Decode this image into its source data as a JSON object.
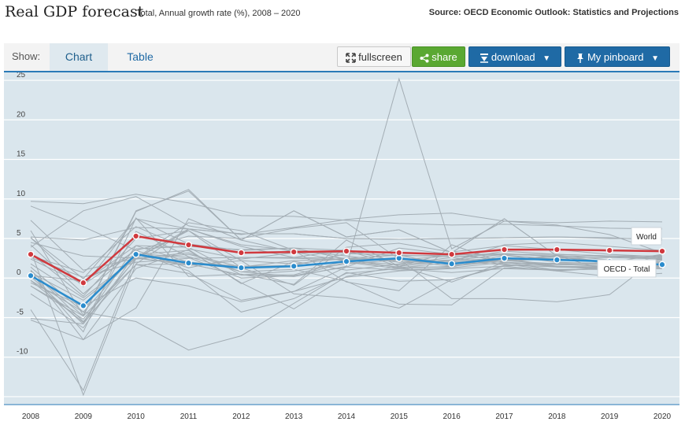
{
  "header": {
    "title": "Real GDP forecast",
    "subtitle": "Total, Annual growth rate (%), 2008 – 2020",
    "source": "Source: OECD Economic Outlook: Statistics and Projections"
  },
  "toolbar": {
    "show_label": "Show:",
    "tabs": [
      {
        "label": "Chart",
        "active": true
      },
      {
        "label": "Table",
        "active": false
      }
    ],
    "buttons": {
      "fullscreen": "fullscreen",
      "share": "share",
      "download": "download",
      "pinboard": "My pinboard"
    },
    "colors": {
      "share": "#5aa832",
      "download": "#1f6aa5",
      "pinboard": "#1f6aa5"
    }
  },
  "chart_data": {
    "type": "line",
    "x": [
      "2008",
      "2009",
      "2010",
      "2011",
      "2012",
      "2013",
      "2014",
      "2015",
      "2016",
      "2017",
      "2018",
      "2019",
      "2020"
    ],
    "ylim": [
      -16,
      26
    ],
    "yticks": [
      25,
      20,
      15,
      10,
      5,
      0,
      -5,
      -10
    ],
    "grid": true,
    "highlighted_series": [
      {
        "name": "World",
        "color": "#d0393e",
        "values": [
          3.0,
          -0.6,
          5.3,
          4.2,
          3.2,
          3.3,
          3.4,
          3.2,
          3.0,
          3.6,
          3.6,
          3.5,
          3.4
        ]
      },
      {
        "name": "OECD - Total",
        "color": "#2a8ccd",
        "values": [
          0.3,
          -3.5,
          3.0,
          1.9,
          1.3,
          1.5,
          2.1,
          2.5,
          1.8,
          2.5,
          2.3,
          2.1,
          1.7
        ]
      }
    ],
    "background_series": [
      [
        3.5,
        -14.8,
        1.8,
        6.2,
        4.2,
        3.5,
        2.8,
        2.0,
        2.3,
        3.4,
        3.0,
        2.8,
        2.6
      ],
      [
        9.7,
        9.4,
        10.6,
        9.5,
        7.9,
        7.8,
        7.3,
        6.9,
        6.7,
        6.8,
        6.6,
        6.3,
        6.2
      ],
      [
        3.9,
        8.5,
        10.3,
        6.6,
        5.5,
        6.4,
        7.4,
        8.0,
        8.2,
        7.2,
        7.0,
        7.2,
        7.1
      ],
      [
        5.2,
        4.8,
        6.4,
        6.2,
        5.6,
        5.6,
        5.0,
        4.9,
        5.0,
        5.1,
        5.2,
        5.0,
        5.0
      ],
      [
        0.7,
        -2.8,
        2.5,
        1.8,
        0.4,
        0.2,
        1.5,
        25.2,
        3.7,
        7.2,
        6.7,
        5.5,
        3.2
      ],
      [
        -4.0,
        -14.2,
        2.5,
        6.2,
        4.0,
        2.6,
        3.6,
        2.0,
        2.1,
        4.2,
        4.5,
        4.0,
        3.5
      ],
      [
        0.8,
        -7.8,
        1.2,
        3.6,
        -0.7,
        2.1,
        1.0,
        1.8,
        2.6,
        1.8,
        0.9,
        1.3,
        1.5
      ],
      [
        -0.3,
        -5.6,
        4.1,
        3.9,
        0.4,
        0.4,
        2.2,
        1.7,
        2.2,
        2.5,
        1.5,
        1.0,
        1.2
      ],
      [
        -1.0,
        -4.8,
        1.7,
        1.8,
        0.4,
        0.9,
        1.8,
        2.3,
        1.5,
        2.4,
        1.4,
        1.3,
        1.3
      ],
      [
        1.0,
        -5.5,
        1.7,
        0.6,
        -2.8,
        -1.7,
        0.1,
        0.9,
        1.2,
        1.5,
        0.9,
        0.2,
        0.6
      ],
      [
        -0.6,
        -3.6,
        0.0,
        -1.0,
        -3.0,
        -1.7,
        1.4,
        3.8,
        3.0,
        2.9,
        2.4,
        2.0,
        1.9
      ],
      [
        -0.3,
        -4.3,
        -5.5,
        -9.1,
        -7.3,
        -3.2,
        0.7,
        -0.4,
        -0.2,
        1.5,
        1.9,
        1.9,
        2.3
      ],
      [
        1.8,
        -2.5,
        2.6,
        1.6,
        2.2,
        1.8,
        2.5,
        2.9,
        1.6,
        2.2,
        2.9,
        2.3,
        2.0
      ],
      [
        2.6,
        0.1,
        2.0,
        2.5,
        2.6,
        2.6,
        2.5,
        2.3,
        2.8,
        2.4,
        2.7,
        1.8,
        2.3
      ],
      [
        2.8,
        0.7,
        6.5,
        3.7,
        2.4,
        3.2,
        3.2,
        2.8,
        2.9,
        3.1,
        2.7,
        2.0,
        2.3
      ],
      [
        -5.1,
        -5.8,
        5.9,
        2.7,
        0.8,
        1.1,
        -0.4,
        -3.3,
        -3.4,
        1.3,
        1.1,
        1.1,
        1.5
      ],
      [
        5.1,
        -0.1,
        7.5,
        4.3,
        3.5,
        3.8,
        2.4,
        1.3,
        2.0,
        2.5,
        2.5,
        2.6,
        2.4
      ],
      [
        0.9,
        -4.8,
        8.4,
        11.2,
        4.8,
        8.5,
        5.2,
        6.1,
        3.2,
        7.5,
        2.8,
        0.9,
        3.0
      ],
      [
        5.1,
        -1.1,
        7.5,
        6.2,
        5.6,
        5.6,
        5.0,
        4.9,
        5.0,
        5.1,
        5.2,
        5.1,
        4.8
      ],
      [
        -5.3,
        -7.8,
        -3.8,
        7.5,
        4.8,
        3.3,
        2.1,
        1.4,
        1.4,
        2.9,
        2.0,
        1.8,
        1.8
      ],
      [
        0.2,
        -5.8,
        2.5,
        3.2,
        0.8,
        0.2,
        2.0,
        1.2,
        1.5,
        2.2,
        1.8,
        1.4,
        1.7
      ],
      [
        3.1,
        -2.3,
        5.0,
        6.0,
        1.3,
        -0.9,
        3.9,
        4.4,
        3.3,
        4.1,
        3.6,
        3.0,
        2.7
      ],
      [
        -2.0,
        -6.3,
        3.2,
        0.9,
        -4.3,
        -2.6,
        0.6,
        1.2,
        0.7,
        1.2,
        1.0,
        1.2,
        1.4
      ],
      [
        0.8,
        -6.8,
        7.6,
        0.2,
        0.5,
        -0.8,
        4.8,
        1.5,
        -0.5,
        2.0,
        1.7,
        1.6,
        1.6
      ],
      [
        1.4,
        -4.3,
        3.1,
        2.6,
        0.0,
        0.3,
        1.4,
        1.0,
        1.3,
        2.0,
        1.5,
        1.3,
        1.6
      ],
      [
        -1.0,
        -5.2,
        2.4,
        3.0,
        1.4,
        2.2,
        2.4,
        2.5,
        2.1,
        1.7,
        1.4,
        1.2,
        1.2
      ],
      [
        3.1,
        -0.5,
        4.1,
        2.0,
        1.5,
        1.6,
        3.1,
        2.9,
        2.7,
        3.0,
        2.8,
        2.7,
        2.5
      ],
      [
        2.4,
        -0.8,
        3.5,
        1.3,
        2.6,
        2.5,
        2.3,
        2.4,
        1.9,
        2.2,
        2.4,
        2.0,
        2.1
      ],
      [
        4.5,
        2.8,
        2.5,
        7.0,
        6.0,
        3.5,
        -0.5,
        -1.6,
        4.2,
        1.9,
        1.8,
        1.8,
        2.4
      ],
      [
        7.3,
        1.0,
        2.5,
        6.0,
        2.2,
        -2.0,
        -2.5,
        -3.8,
        -0.2,
        1.6,
        1.5,
        1.4,
        1.6
      ],
      [
        9.1,
        6.5,
        3.5,
        5.3,
        5.0,
        6.3,
        7.0,
        2.4,
        -2.6,
        -2.6,
        -3.0,
        -2.1,
        3.0
      ],
      [
        0.3,
        -0.3,
        3.0,
        3.5,
        -0.6,
        -3.9,
        0.2,
        1.5,
        3.3,
        2.0,
        1.0,
        1.2,
        1.5
      ],
      [
        4.2,
        -2.0,
        3.7,
        4.0,
        3.6,
        3.8,
        3.5,
        1.5,
        2.2,
        3.0,
        3.0,
        2.8,
        2.8
      ],
      [
        6.0,
        -4.7,
        8.5,
        11.0,
        4.8,
        8.5,
        5.2,
        6.1,
        3.2,
        7.5,
        2.8,
        2.0,
        3.0
      ]
    ],
    "end_labels": [
      {
        "series": "World",
        "text": "World"
      },
      {
        "series": "OECD - Total",
        "text": "OECD - Total"
      }
    ]
  }
}
